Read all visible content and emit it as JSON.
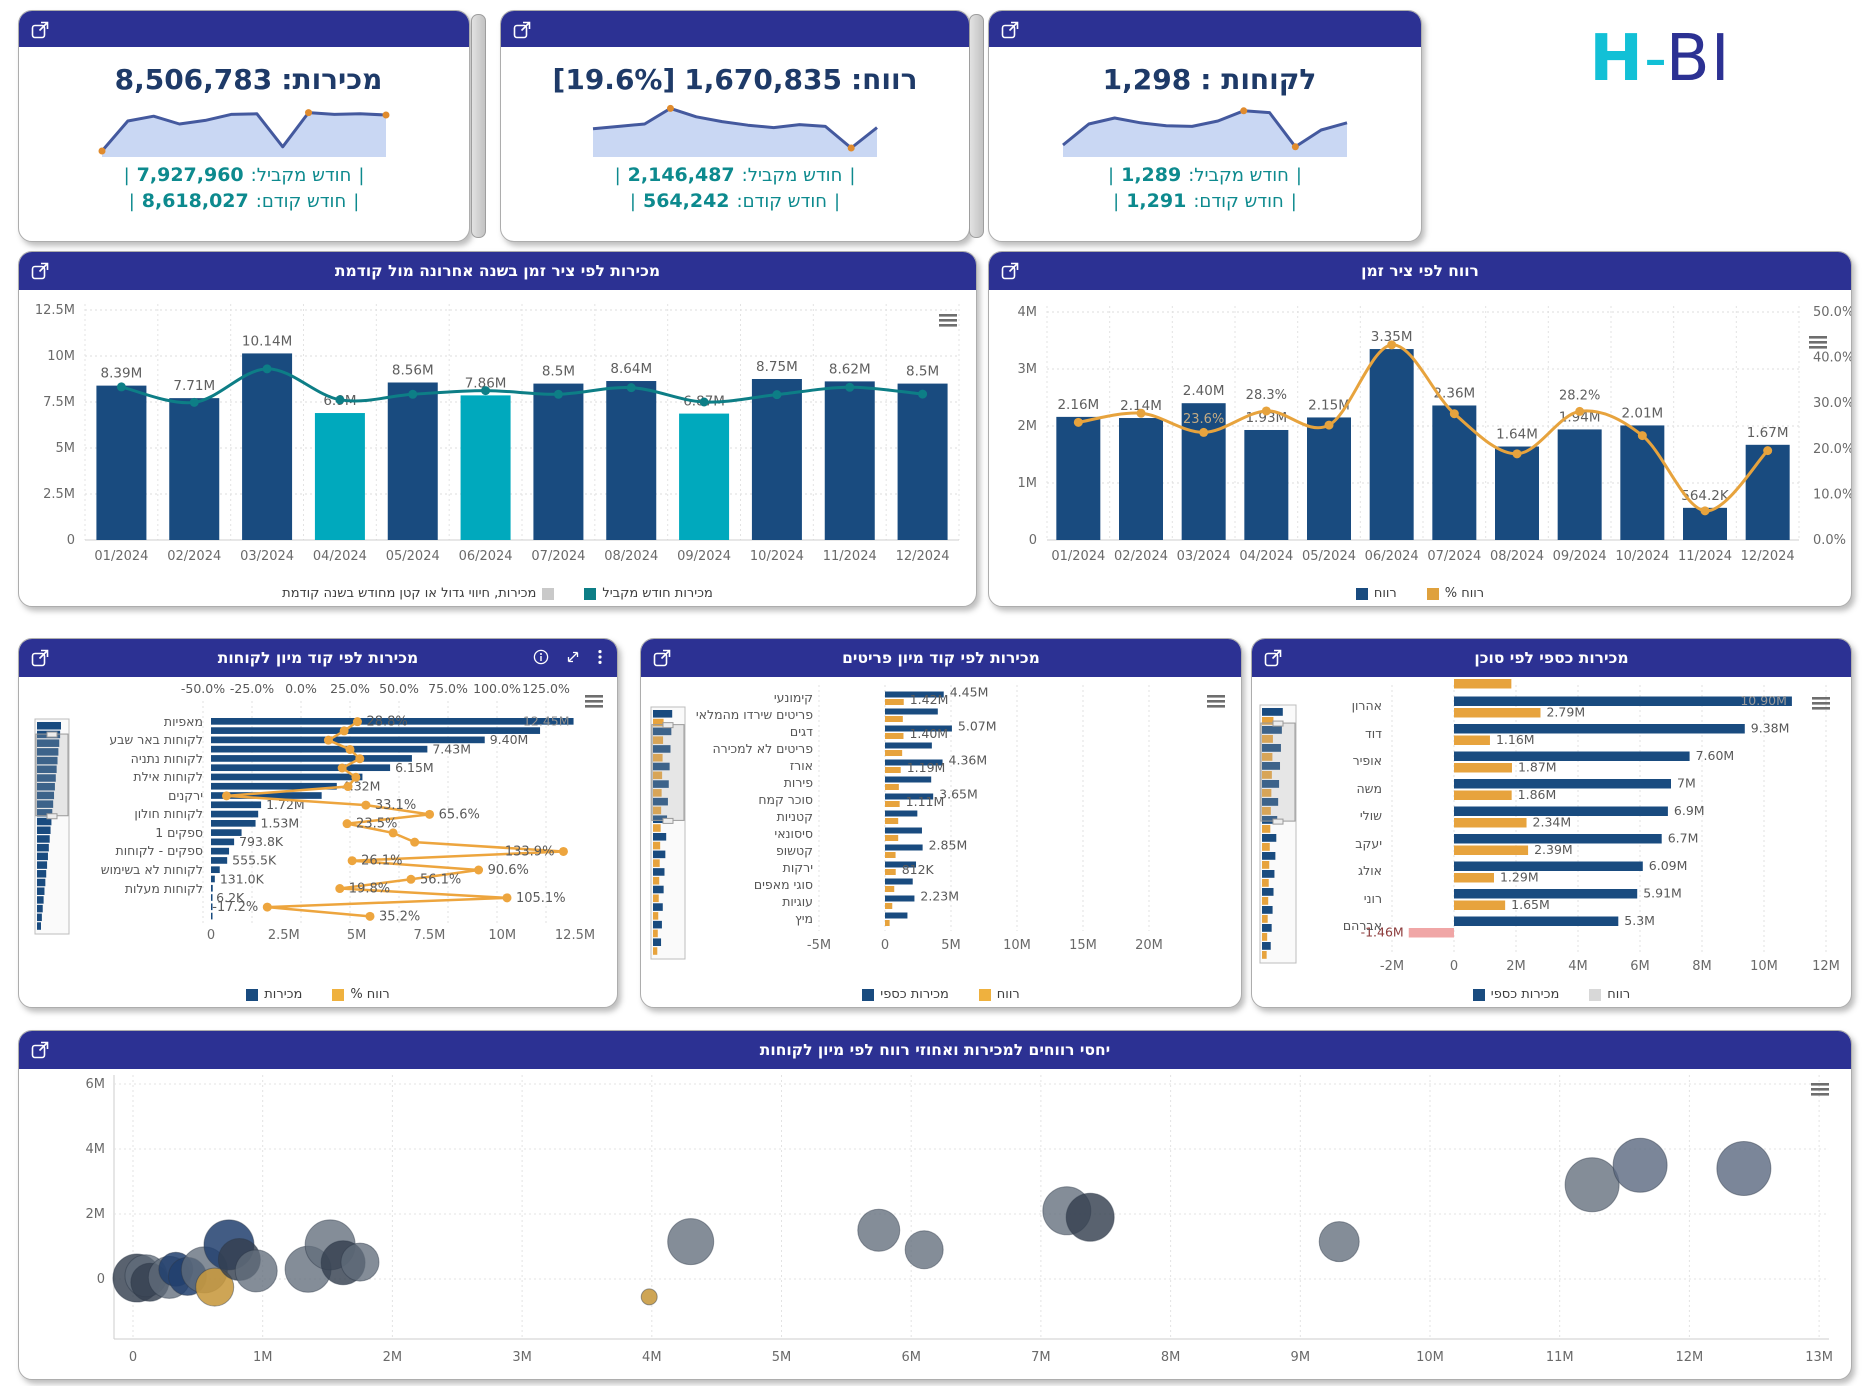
{
  "logo": {
    "h": "H",
    "dash": "-",
    "bi": "BI"
  },
  "colors": {
    "header": "#2c3193",
    "bar_blue": "#194b7f",
    "bar_teal": "#00a9bd",
    "line_teal": "#0d7e86",
    "orange": "#e7a33d",
    "kpi_navy": "#1e3a68",
    "kpi_teal": "#0d8a8e",
    "negative": "#f0a6a6",
    "logo_cyan": "#12c0d6",
    "spark_line": "#44599e",
    "spark_fill": "#c9d7f3",
    "spark_dot": "#e08b2d"
  },
  "palette": {
    "gray": "rgba(97,109,123,0.78)",
    "dark": "rgba(53,63,79,0.82)",
    "navy": "rgba(33,64,110,0.85)",
    "slate": "rgba(90,104,128,0.8)",
    "orange": "rgba(199,153,62,0.88)"
  },
  "icons": {
    "menu": "≡",
    "info": "i",
    "expand": "⤢",
    "more": "⋮",
    "popout": "open-in-new-window"
  },
  "kpis": [
    {
      "title": "מכירות:",
      "value": "8,506,783",
      "extra": "",
      "rows": [
        {
          "pre": "|",
          "label": "חודש מקביל:",
          "value": "7,927,960",
          "post": "|"
        },
        {
          "pre": "|",
          "label": "חודש קודם:",
          "value": "8,618,027",
          "post": "|"
        }
      ],
      "spark": [
        0.5,
        5.5,
        6.3,
        5.0,
        5.6,
        6.6,
        6.7,
        1.2,
        6.9,
        6.6,
        6.7,
        6.5
      ],
      "markers": [
        0,
        8,
        11
      ]
    },
    {
      "title": "רווח:",
      "value": "1,670,835",
      "extra": "[19.6%]",
      "rows": [
        {
          "pre": "|",
          "label": "חודש מקביל:",
          "value": "2,146,487",
          "post": "|"
        },
        {
          "pre": "|",
          "label": "חודש קודם:",
          "value": "564,242",
          "post": "|"
        }
      ],
      "spark": [
        4.2,
        4.6,
        5.0,
        7.6,
        6.2,
        5.4,
        4.8,
        4.4,
        4.9,
        4.6,
        1.0,
        4.4
      ],
      "markers": [
        3,
        10
      ]
    },
    {
      "title": "לקוחות :",
      "value": "1,298",
      "extra": "",
      "rows": [
        {
          "pre": "|",
          "label": "חודש מקביל:",
          "value": "1,289",
          "post": "|"
        },
        {
          "pre": "|",
          "label": "חודש קודם:",
          "value": "1,291",
          "post": "|"
        }
      ],
      "spark": [
        1.5,
        5.0,
        6.0,
        5.2,
        4.7,
        4.6,
        5.5,
        7.2,
        6.9,
        1.2,
        4.0,
        5.2
      ],
      "markers": [
        7,
        9
      ]
    }
  ],
  "chart_data": [
    {
      "id": "sales_by_month",
      "type": "bar",
      "title": "מכירות לפי ציר זמן בשנה אחרונה מול קודמת",
      "categories": [
        "01/2024",
        "02/2024",
        "03/2024",
        "04/2024",
        "05/2024",
        "06/2024",
        "07/2024",
        "08/2024",
        "09/2024",
        "10/2024",
        "11/2024",
        "12/2024"
      ],
      "series": [
        {
          "name": "מכירות",
          "type": "column",
          "values": [
            8.39,
            7.71,
            10.14,
            6.9,
            8.56,
            7.86,
            8.5,
            8.64,
            6.87,
            8.75,
            8.62,
            8.5
          ],
          "labels": [
            "8.39M",
            "7.71M",
            "10.14M",
            "6.9M",
            "8.56M",
            "7.86M",
            "8.5M",
            "8.64M",
            "6.87M",
            "8.75M",
            "8.62M",
            "8.5M"
          ],
          "highlight_flags": [
            0,
            0,
            0,
            1,
            0,
            1,
            0,
            0,
            1,
            0,
            0,
            0
          ]
        },
        {
          "name": "מכירות חודש מקביל",
          "type": "line",
          "values": [
            8.32,
            7.48,
            9.3,
            7.62,
            7.92,
            8.12,
            7.92,
            8.28,
            7.5,
            7.9,
            8.3,
            7.93
          ]
        }
      ],
      "ylim": [
        0,
        12.5
      ],
      "yticks": [
        "0",
        "2.5M",
        "5M",
        "7.5M",
        "10M",
        "12.5M"
      ],
      "legend": [
        {
          "label": "מכירות, חיווי גדול או קטן מחודש בשנה קודמת",
          "color": "#c9c9c9",
          "swatch": "right"
        },
        {
          "label": "מכירות חודש מקביל",
          "color": "#0d7e86",
          "swatch": "left"
        }
      ]
    },
    {
      "id": "profit_by_month",
      "type": "bar",
      "title": "רווח לפי ציר זמן",
      "categories": [
        "01/2024",
        "02/2024",
        "03/2024",
        "04/2024",
        "05/2024",
        "06/2024",
        "07/2024",
        "08/2024",
        "09/2024",
        "10/2024",
        "11/2024",
        "12/2024"
      ],
      "series": [
        {
          "name": "רווח",
          "type": "column",
          "values": [
            2.16,
            2.14,
            2.4,
            1.93,
            2.15,
            3.35,
            2.36,
            1.64,
            1.94,
            2.01,
            0.5642,
            1.67
          ],
          "labels": [
            "2.16M",
            "2.14M",
            "2.40M",
            "1.93M",
            "2.15M",
            "3.35M",
            "2.36M",
            "1.64M",
            "1.94M",
            "2.01M",
            "564.2K",
            "1.67M"
          ]
        },
        {
          "name": "רווח %",
          "type": "line",
          "values": [
            25.8,
            27.8,
            23.6,
            28.3,
            25.2,
            42.8,
            27.7,
            18.9,
            28.2,
            22.9,
            6.4,
            19.6
          ],
          "point_labels": [
            {
              "i": 2,
              "text": "23.6%",
              "pos": "onbar"
            },
            {
              "i": 3,
              "text": "28.3%",
              "pos": "above"
            },
            {
              "i": 8,
              "text": "28.2%",
              "pos": "above"
            }
          ]
        }
      ],
      "ylim": [
        0,
        4
      ],
      "yticks": [
        "0",
        "1M",
        "2M",
        "3M",
        "4M"
      ],
      "y2lim": [
        0,
        50
      ],
      "y2ticks": [
        "0.0%",
        "10.0%",
        "20.0%",
        "30.0%",
        "40.0%",
        "50.0%"
      ],
      "legend": [
        {
          "label": "רווח",
          "color": "#194b7f",
          "swatch": "left"
        },
        {
          "label": "רווח %",
          "color": "#dfa13d",
          "swatch": "left"
        }
      ]
    },
    {
      "id": "sales_by_customer_group",
      "type": "barh",
      "title": "מכירות לפי קוד מיון לקוחות",
      "rows": [
        {
          "l": "מאפיות",
          "s": 12.45,
          "sl": "12.45M",
          "p": 28.8,
          "pl": "28.8%"
        },
        {
          "l": "",
          "s": 11.3,
          "sl": "",
          "p": 22,
          "pl": ""
        },
        {
          "l": "לקוחות באר שבע",
          "s": 9.4,
          "sl": "9.40M",
          "p": 14,
          "pl": ""
        },
        {
          "l": "",
          "s": 7.43,
          "sl": "7.43M",
          "p": 25,
          "pl": ""
        },
        {
          "l": "לקוחות נתניה",
          "s": 6.9,
          "sl": "",
          "p": 30,
          "pl": ""
        },
        {
          "l": "",
          "s": 6.15,
          "sl": "6.15M",
          "p": 21,
          "pl": ""
        },
        {
          "l": "לקוחות אילת",
          "s": 5.2,
          "sl": "",
          "p": 28,
          "pl": ""
        },
        {
          "l": "",
          "s": 4.32,
          "sl": "4.32M",
          "p": 24,
          "pl": ""
        },
        {
          "l": "ירקנים",
          "s": 3.8,
          "sl": "",
          "p": -38,
          "pl": ""
        },
        {
          "l": "",
          "s": 1.72,
          "sl": "1.72M",
          "p": 33.1,
          "pl": "33.1%"
        },
        {
          "l": "לקוחות חולון",
          "s": 1.62,
          "sl": "",
          "p": 65.6,
          "pl": "65.6%"
        },
        {
          "l": "",
          "s": 1.53,
          "sl": "1.53M",
          "p": 23.5,
          "pl": "23.5%"
        },
        {
          "l": "ספקים 1",
          "s": 1.05,
          "sl": "",
          "p": 47,
          "pl": ""
        },
        {
          "l": "",
          "s": 0.7938,
          "sl": "793.8K",
          "p": 58,
          "pl": ""
        },
        {
          "l": "ספקים - לקוחות",
          "s": 0.62,
          "sl": "",
          "p": 133.9,
          "pl": "133.9%"
        },
        {
          "l": "",
          "s": 0.5555,
          "sl": "555.5K",
          "p": 26.1,
          "pl": "26.1%"
        },
        {
          "l": "לקוחות לא בשימוש",
          "s": 0.3,
          "sl": "",
          "p": 90.6,
          "pl": "90.6%"
        },
        {
          "l": "",
          "s": 0.131,
          "sl": "131.0K",
          "p": 56.1,
          "pl": "56.1%"
        },
        {
          "l": "לקוחות מעלות",
          "s": 0.06,
          "sl": "",
          "p": 19.8,
          "pl": "19.8%"
        },
        {
          "l": "",
          "s": 0.0062,
          "sl": "6.2K",
          "p": 105.1,
          "pl": "105.1%"
        },
        {
          "l": "",
          "s": 0.004,
          "sl": "",
          "p": -17.2,
          "pl": "-17.2%"
        },
        {
          "l": "",
          "s": 0.003,
          "sl": "",
          "p": 35.2,
          "pl": "35.2%"
        }
      ],
      "top_axis": [
        "-50.0%",
        "-25.0%",
        "0.0%",
        "25.0%",
        "50.0%",
        "75.0%",
        "100.0%",
        "125.0%"
      ],
      "bottom_axis": [
        "0",
        "2.5M",
        "5M",
        "7.5M",
        "10M",
        "12.5M"
      ],
      "xlim_sales": [
        0,
        12.5
      ],
      "xlim_pct": [
        -50,
        125
      ],
      "legend": [
        {
          "label": "מכירות",
          "color": "#194b7f",
          "swatch": "left"
        },
        {
          "label": "רווח %",
          "color": "#efb13e",
          "swatch": "left"
        }
      ]
    },
    {
      "id": "sales_by_item_group",
      "type": "barh",
      "title": "מכירות לפי קוד מיון פריטים",
      "rows": [
        {
          "l": "קימונעי",
          "s": 4.45,
          "sl": "4.45M",
          "p": 1.42,
          "pl": "1.42M"
        },
        {
          "l": "פריטים שירדו מהמלאי",
          "s": 4.0,
          "sl": "",
          "p": 1.35,
          "pl": ""
        },
        {
          "l": "דגים",
          "s": 5.07,
          "sl": "5.07M",
          "p": 1.4,
          "pl": "1.40M"
        },
        {
          "l": "פריטים לא למכירה",
          "s": 3.55,
          "sl": "",
          "p": 1.3,
          "pl": ""
        },
        {
          "l": "אורז",
          "s": 4.36,
          "sl": "4.36M",
          "p": 1.19,
          "pl": "1.19M"
        },
        {
          "l": "פירות",
          "s": 3.5,
          "sl": "",
          "p": 1.05,
          "pl": ""
        },
        {
          "l": "סוכר קמח",
          "s": 3.65,
          "sl": "3.65M",
          "p": 1.11,
          "pl": "1.11M"
        },
        {
          "l": "קטניות",
          "s": 2.45,
          "sl": "",
          "p": 1.0,
          "pl": ""
        },
        {
          "l": "סיסונאי",
          "s": 2.8,
          "sl": "",
          "p": 1.0,
          "pl": ""
        },
        {
          "l": "קטשופ",
          "s": 2.85,
          "sl": "2.85M",
          "p": 0.8,
          "pl": ""
        },
        {
          "l": "ירקות",
          "s": 2.35,
          "sl": "",
          "p": 0.812,
          "pl": "812K"
        },
        {
          "l": "סוגי מאפים",
          "s": 2.1,
          "sl": "",
          "p": 0.7,
          "pl": ""
        },
        {
          "l": "עוגיות",
          "s": 2.23,
          "sl": "2.23M",
          "p": 0.55,
          "pl": ""
        },
        {
          "l": "מיץ",
          "s": 1.7,
          "sl": "",
          "p": 0.35,
          "pl": ""
        }
      ],
      "x_axis": [
        "-5M",
        "0",
        "5M",
        "10M",
        "15M",
        "20M"
      ],
      "xlim": [
        -5,
        20
      ],
      "legend": [
        {
          "label": "מכירות כספי",
          "color": "#194b7f",
          "swatch": "left"
        },
        {
          "label": "רווח",
          "color": "#efb13e",
          "swatch": "left"
        }
      ]
    },
    {
      "id": "sales_by_agent",
      "type": "barh",
      "title": "מכירות כספי לפי סוכן",
      "partial_top_profit": 1.85,
      "rows": [
        {
          "l": "אהרון",
          "s": 10.9,
          "sl": "10.90M",
          "p": 2.79,
          "pl": "2.79M"
        },
        {
          "l": "דוד",
          "s": 9.38,
          "sl": "9.38M",
          "p": 1.16,
          "pl": "1.16M"
        },
        {
          "l": "אופיר",
          "s": 7.6,
          "sl": "7.60M",
          "p": 1.87,
          "pl": "1.87M"
        },
        {
          "l": "משה",
          "s": 7.0,
          "sl": "7M",
          "p": 1.86,
          "pl": "1.86M"
        },
        {
          "l": "שולי",
          "s": 6.9,
          "sl": "6.9M",
          "p": 2.34,
          "pl": "2.34M"
        },
        {
          "l": "יעקב",
          "s": 6.7,
          "sl": "6.7M",
          "p": 2.39,
          "pl": "2.39M"
        },
        {
          "l": "אולג",
          "s": 6.09,
          "sl": "6.09M",
          "p": 1.29,
          "pl": "1.29M"
        },
        {
          "l": "רוני",
          "s": 5.91,
          "sl": "5.91M",
          "p": 1.65,
          "pl": "1.65M"
        },
        {
          "l": "אברהם",
          "s": 5.3,
          "sl": "5.3M",
          "p": -1.46,
          "pl": "-1.46M"
        }
      ],
      "x_axis": [
        "-2M",
        "0",
        "2M",
        "4M",
        "6M",
        "8M",
        "10M",
        "12M"
      ],
      "xlim": [
        -2,
        12
      ],
      "legend": [
        {
          "label": "מכירות כספי",
          "color": "#194b7f",
          "swatch": "left"
        },
        {
          "label": "רווח",
          "color": "#d8d8d8",
          "swatch": "left"
        }
      ]
    },
    {
      "id": "profit_sales_bubbles",
      "type": "scatter",
      "title": "יחסי רווחים למכירות ואחוזי רווח לפי מיון לקוחות",
      "x_axis": [
        "0",
        "1M",
        "2M",
        "3M",
        "4M",
        "5M",
        "6M",
        "7M",
        "8M",
        "9M",
        "10M",
        "11M",
        "12M",
        "13M"
      ],
      "xlim": [
        0,
        13
      ],
      "yticks": [
        "0",
        "2M",
        "4M",
        "6M"
      ],
      "ylim": [
        -1.3,
        6.3
      ],
      "points": [
        {
          "x": 0.03,
          "y": 0.03,
          "r": 24,
          "c": "dark"
        },
        {
          "x": 0.1,
          "y": 0.1,
          "r": 21,
          "c": "gray"
        },
        {
          "x": 0.13,
          "y": -0.1,
          "r": 19,
          "c": "dark"
        },
        {
          "x": 0.28,
          "y": 0.05,
          "r": 21,
          "c": "gray"
        },
        {
          "x": 0.33,
          "y": 0.3,
          "r": 17,
          "c": "navy"
        },
        {
          "x": 0.42,
          "y": 0.08,
          "r": 19,
          "c": "navy"
        },
        {
          "x": 0.55,
          "y": 0.28,
          "r": 23,
          "c": "gray"
        },
        {
          "x": 0.63,
          "y": -0.25,
          "r": 19,
          "c": "orange"
        },
        {
          "x": 0.74,
          "y": 1.05,
          "r": 25,
          "c": "navy"
        },
        {
          "x": 0.82,
          "y": 0.6,
          "r": 21,
          "c": "dark"
        },
        {
          "x": 0.95,
          "y": 0.25,
          "r": 21,
          "c": "gray"
        },
        {
          "x": 1.35,
          "y": 0.3,
          "r": 23,
          "c": "gray"
        },
        {
          "x": 1.52,
          "y": 1.05,
          "r": 25,
          "c": "gray"
        },
        {
          "x": 1.62,
          "y": 0.5,
          "r": 22,
          "c": "dark"
        },
        {
          "x": 1.75,
          "y": 0.52,
          "r": 19,
          "c": "gray"
        },
        {
          "x": 3.98,
          "y": -0.55,
          "r": 8,
          "c": "orange"
        },
        {
          "x": 4.3,
          "y": 1.15,
          "r": 23,
          "c": "gray"
        },
        {
          "x": 5.75,
          "y": 1.5,
          "r": 21,
          "c": "gray"
        },
        {
          "x": 6.1,
          "y": 0.9,
          "r": 19,
          "c": "gray"
        },
        {
          "x": 7.2,
          "y": 2.1,
          "r": 24,
          "c": "gray"
        },
        {
          "x": 7.38,
          "y": 1.9,
          "r": 24,
          "c": "dark"
        },
        {
          "x": 9.3,
          "y": 1.15,
          "r": 20,
          "c": "gray"
        },
        {
          "x": 11.25,
          "y": 2.9,
          "r": 27,
          "c": "gray"
        },
        {
          "x": 11.62,
          "y": 3.5,
          "r": 27,
          "c": "slate"
        },
        {
          "x": 12.42,
          "y": 3.4,
          "r": 27,
          "c": "slate"
        }
      ]
    }
  ]
}
